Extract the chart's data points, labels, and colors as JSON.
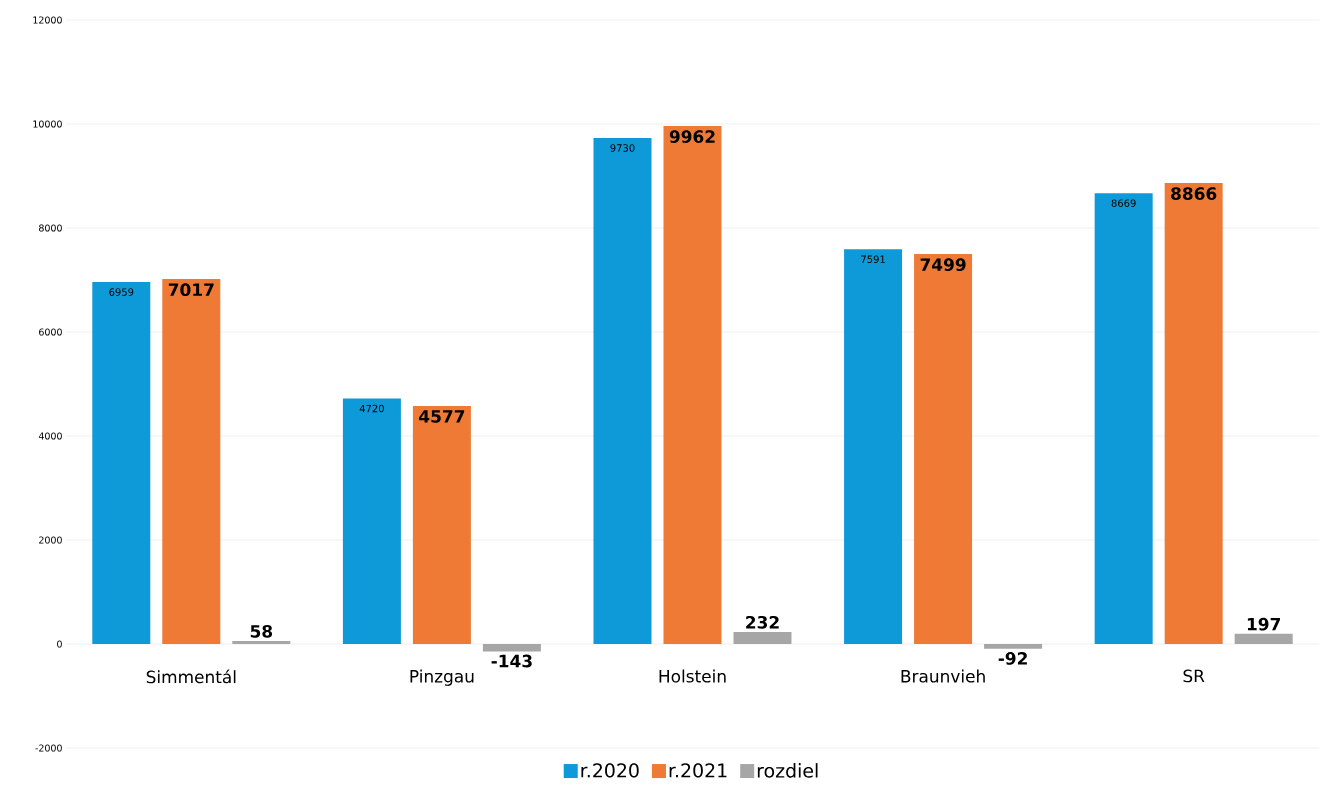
{
  "chart_data": {
    "type": "bar",
    "categories": [
      "Simmentál",
      "Pinzgau",
      "Holstein",
      "Braunvieh",
      "SR"
    ],
    "series": [
      {
        "name": "r.2020",
        "color": "#0e9ad9",
        "values": [
          6959,
          4720,
          9730,
          7591,
          8669
        ],
        "value_labels": [
          "6959",
          "4720",
          "9730",
          "7591",
          "8669"
        ]
      },
      {
        "name": "r.2021",
        "color": "#ee7a35",
        "values": [
          7017,
          4577,
          9962,
          7499,
          8866
        ],
        "value_labels": [
          "7017",
          "4577",
          "9962",
          "7499",
          "8866"
        ]
      },
      {
        "name": "rozdiel",
        "color": "#a6a6a6",
        "values": [
          58,
          -143,
          232,
          -92,
          197
        ],
        "value_labels": [
          "58",
          "-143",
          "232",
          "-92",
          "197"
        ]
      }
    ],
    "ylim": [
      -2000,
      12000
    ],
    "yticks": [
      -2000,
      0,
      2000,
      4000,
      6000,
      8000,
      10000,
      12000
    ],
    "grid": "y",
    "legend": "bottom"
  }
}
